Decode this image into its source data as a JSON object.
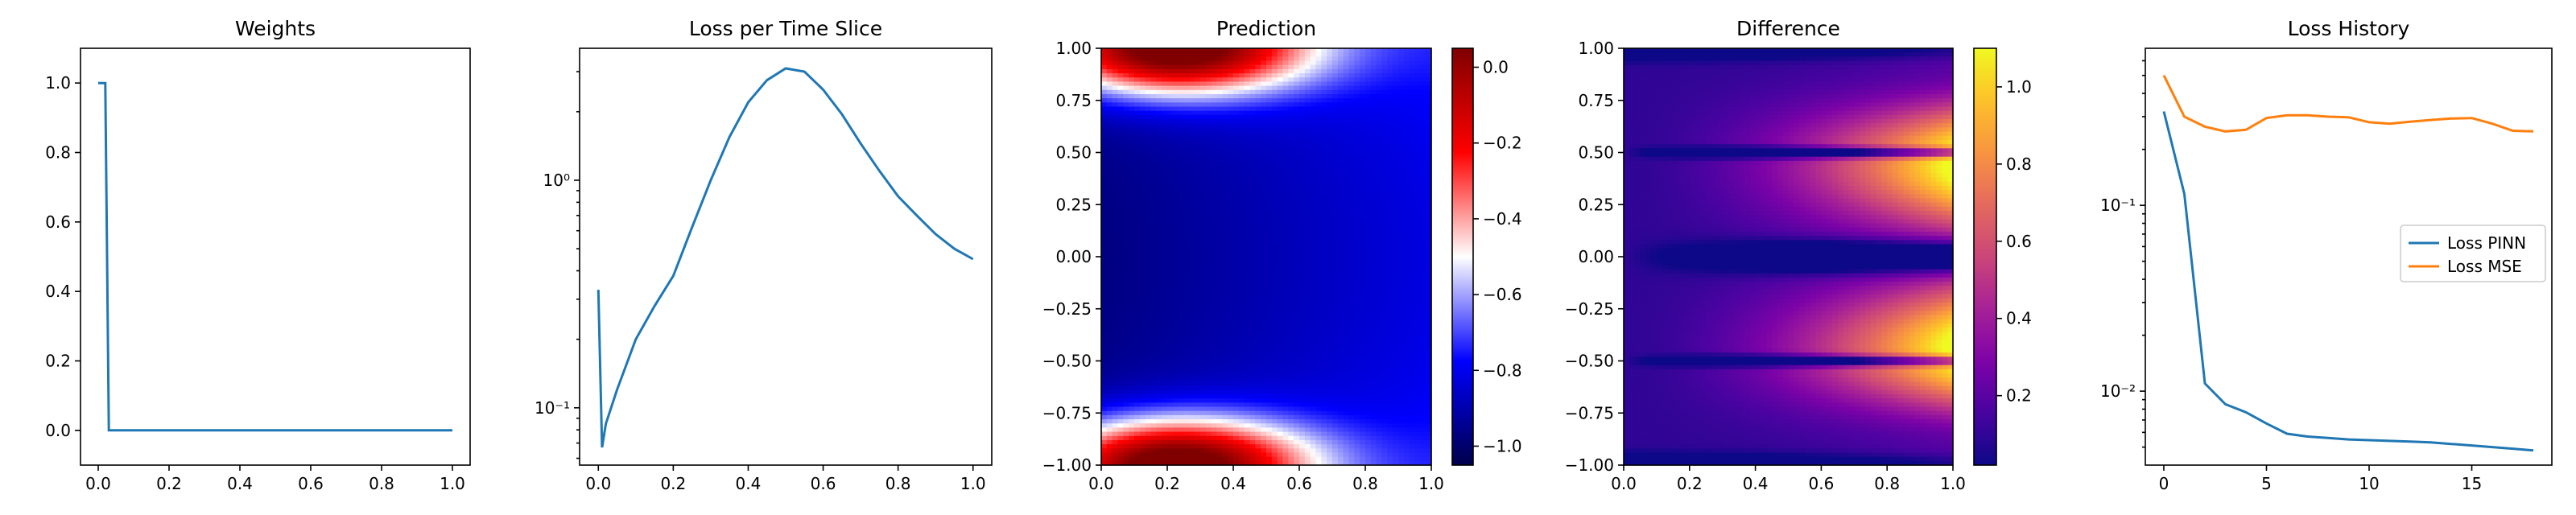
{
  "chart_data": [
    {
      "type": "line",
      "title": "Weights",
      "xlabel": "",
      "ylabel": "",
      "xlim": [
        -0.05,
        1.05
      ],
      "ylim": [
        -0.1,
        1.1
      ],
      "yscale": "linear",
      "xticks": [
        0.0,
        0.2,
        0.4,
        0.6,
        0.8,
        1.0
      ],
      "xtick_labels": [
        "0.0",
        "0.2",
        "0.4",
        "0.6",
        "0.8",
        "1.0"
      ],
      "yticks": [
        0.0,
        0.2,
        0.4,
        0.6,
        0.8,
        1.0
      ],
      "ytick_labels": [
        "0.0",
        "0.2",
        "0.4",
        "0.6",
        "0.8",
        "1.0"
      ],
      "series": [
        {
          "color": "#1f77b4",
          "x": [
            0.0,
            0.02,
            0.03,
            1.0
          ],
          "y": [
            1.0,
            1.0,
            0.0,
            0.0
          ]
        }
      ]
    },
    {
      "type": "line",
      "title": "Loss per Time Slice",
      "xlabel": "",
      "ylabel": "",
      "xlim": [
        -0.05,
        1.05
      ],
      "ylim": [
        0.056,
        3.8
      ],
      "yscale": "log",
      "xticks": [
        0.0,
        0.2,
        0.4,
        0.6,
        0.8,
        1.0
      ],
      "xtick_labels": [
        "0.0",
        "0.2",
        "0.4",
        "0.6",
        "0.8",
        "1.0"
      ],
      "yticks": [
        0.1,
        1.0
      ],
      "ytick_labels": [
        "10⁻¹",
        "10⁰"
      ],
      "series": [
        {
          "color": "#1f77b4",
          "x": [
            0.0,
            0.01,
            0.02,
            0.05,
            0.1,
            0.15,
            0.2,
            0.25,
            0.3,
            0.35,
            0.4,
            0.45,
            0.5,
            0.55,
            0.6,
            0.65,
            0.7,
            0.75,
            0.8,
            0.85,
            0.9,
            0.95,
            1.0
          ],
          "y": [
            0.33,
            0.067,
            0.085,
            0.12,
            0.2,
            0.28,
            0.38,
            0.62,
            1.0,
            1.55,
            2.2,
            2.75,
            3.1,
            3.0,
            2.5,
            1.95,
            1.45,
            1.1,
            0.85,
            0.7,
            0.58,
            0.5,
            0.45
          ]
        }
      ]
    },
    {
      "type": "heatmap",
      "title": "Prediction",
      "xlabel": "",
      "ylabel": "",
      "xlim": [
        0.0,
        1.0
      ],
      "ylim": [
        -1.0,
        1.0
      ],
      "colormap": "seismic",
      "clim": [
        -1.05,
        0.05
      ],
      "xticks": [
        0.0,
        0.2,
        0.4,
        0.6,
        0.8,
        1.0
      ],
      "xtick_labels": [
        "0.0",
        "0.2",
        "0.4",
        "0.6",
        "0.8",
        "1.0"
      ],
      "yticks": [
        1.0,
        0.75,
        0.5,
        0.25,
        0.0,
        -0.25,
        -0.5,
        -0.75,
        -1.0
      ],
      "ytick_labels": [
        "1.00",
        "0.75",
        "0.50",
        "0.25",
        "0.00",
        "−0.25",
        "−0.50",
        "−0.75",
        "−1.00"
      ],
      "colorbar_ticks": [
        0.0,
        -0.2,
        -0.4,
        -0.6,
        -0.8,
        -1.0
      ],
      "colorbar_tick_labels": [
        "0.0",
        "−0.2",
        "−0.4",
        "−0.6",
        "−0.8",
        "−1.0"
      ]
    },
    {
      "type": "heatmap",
      "title": "Difference",
      "xlabel": "",
      "ylabel": "",
      "xlim": [
        0.0,
        1.0
      ],
      "ylim": [
        -1.0,
        1.0
      ],
      "colormap": "plasma",
      "clim": [
        0.02,
        1.1
      ],
      "xticks": [
        0.0,
        0.2,
        0.4,
        0.6,
        0.8,
        1.0
      ],
      "xtick_labels": [
        "0.0",
        "0.2",
        "0.4",
        "0.6",
        "0.8",
        "1.0"
      ],
      "yticks": [
        1.0,
        0.75,
        0.5,
        0.25,
        0.0,
        -0.25,
        -0.5,
        -0.75,
        -1.0
      ],
      "ytick_labels": [
        "1.00",
        "0.75",
        "0.50",
        "0.25",
        "0.00",
        "−0.25",
        "−0.50",
        "−0.75",
        "−1.00"
      ],
      "colorbar_ticks": [
        1.0,
        0.8,
        0.6,
        0.4,
        0.2
      ],
      "colorbar_tick_labels": [
        "1.0",
        "0.8",
        "0.6",
        "0.4",
        "0.2"
      ]
    },
    {
      "type": "line",
      "title": "Loss History",
      "xlabel": "",
      "ylabel": "",
      "xlim": [
        -0.9,
        18.9
      ],
      "ylim": [
        0.004,
        0.7
      ],
      "yscale": "log",
      "legend": "center-right",
      "xticks": [
        0,
        5,
        10,
        15
      ],
      "xtick_labels": [
        "0",
        "5",
        "10",
        "15"
      ],
      "yticks": [
        0.01,
        0.1
      ],
      "ytick_labels": [
        "10⁻²",
        "10⁻¹"
      ],
      "series": [
        {
          "name": "Loss PINN",
          "color": "#1f77b4",
          "x": [
            0,
            1,
            2,
            3,
            4,
            5,
            6,
            7,
            8,
            9,
            10,
            11,
            12,
            13,
            14,
            15,
            16,
            17,
            18
          ],
          "y": [
            0.32,
            0.115,
            0.011,
            0.0085,
            0.0077,
            0.0067,
            0.0059,
            0.0057,
            0.0056,
            0.0055,
            0.00545,
            0.0054,
            0.00535,
            0.0053,
            0.0052,
            0.0051,
            0.005,
            0.0049,
            0.0048
          ]
        },
        {
          "name": "Loss MSE",
          "color": "#ff7f0e",
          "x": [
            0,
            1,
            2,
            3,
            4,
            5,
            6,
            7,
            8,
            9,
            10,
            11,
            12,
            13,
            14,
            15,
            16,
            17,
            18
          ],
          "y": [
            0.5,
            0.3,
            0.265,
            0.25,
            0.255,
            0.295,
            0.305,
            0.305,
            0.3,
            0.298,
            0.28,
            0.275,
            0.282,
            0.288,
            0.293,
            0.295,
            0.275,
            0.252,
            0.25
          ]
        }
      ]
    }
  ]
}
